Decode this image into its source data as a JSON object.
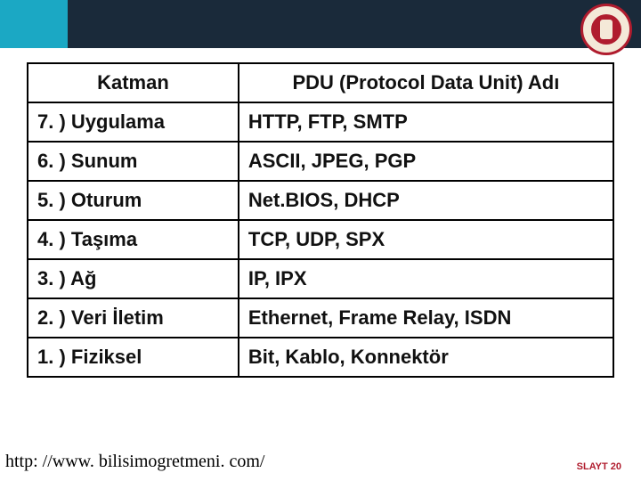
{
  "table": {
    "header": {
      "col1": "Katman",
      "col2": "PDU (Protocol Data Unit) Adı"
    },
    "rows": [
      {
        "layer": "7. ) Uygulama",
        "pdu": "HTTP, FTP, SMTP"
      },
      {
        "layer": "6. ) Sunum",
        "pdu": "ASCII, JPEG, PGP"
      },
      {
        "layer": "5. ) Oturum",
        "pdu": "Net.BIOS, DHCP"
      },
      {
        "layer": "4. ) Taşıma",
        "pdu": "TCP, UDP, SPX"
      },
      {
        "layer": "3. ) Ağ",
        "pdu": "IP, IPX"
      },
      {
        "layer": "2. ) Veri İletim",
        "pdu": "Ethernet, Frame Relay, ISDN"
      },
      {
        "layer": "1. ) Fiziksel",
        "pdu": "Bit, Kablo, Konnektör"
      }
    ],
    "border_color": "#000000",
    "header_align": "center",
    "body_align": "left",
    "font_family": "Verdana",
    "font_weight": "bold",
    "font_size_pt": 16,
    "col1_width_pct": 36
  },
  "footer": {
    "url": "http: //www. bilisimogretmeni. com/",
    "slide_label": "SLAYT 20"
  },
  "colors": {
    "band_left": "#1ba8c4",
    "band_right": "#1a2a3a",
    "logo_ring": "#b01c2e",
    "logo_bg": "#f4e9d8",
    "slide_label": "#b01c2e",
    "page_bg": "#ffffff",
    "text": "#111111"
  }
}
